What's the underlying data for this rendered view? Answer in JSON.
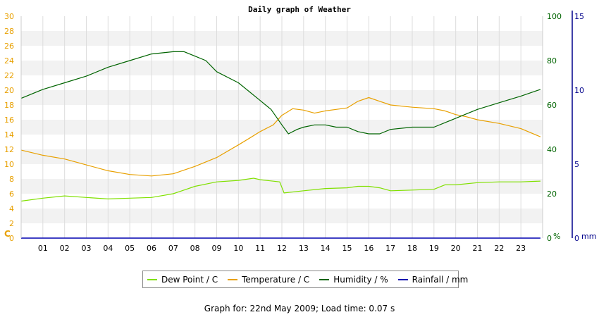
{
  "chart_data": {
    "type": "line",
    "title": "Daily graph of Weather",
    "x_ticks": [
      "01",
      "02",
      "03",
      "04",
      "05",
      "06",
      "07",
      "08",
      "09",
      "10",
      "11",
      "12",
      "13",
      "14",
      "15",
      "16",
      "17",
      "18",
      "19",
      "20",
      "21",
      "22",
      "23"
    ],
    "xlim": [
      0,
      24
    ],
    "left_axis": {
      "unit_label": "C",
      "ticks": [
        0,
        2,
        4,
        6,
        8,
        10,
        12,
        14,
        16,
        18,
        20,
        22,
        24,
        26,
        28,
        30
      ],
      "range": [
        0,
        30
      ],
      "color": "#e8a000"
    },
    "right_axis_humidity": {
      "unit_label": "%",
      "ticks": [
        0,
        20,
        40,
        60,
        80,
        100
      ],
      "range": [
        0,
        100
      ],
      "color": "#006400"
    },
    "right_axis_rain": {
      "unit_label": "mm",
      "ticks": [
        0,
        5,
        10,
        15
      ],
      "range": [
        0,
        15
      ],
      "color": "#00008b"
    },
    "grid": true,
    "series": [
      {
        "name": "Dew Point / C",
        "axis": "left",
        "color": "#80e000",
        "x": [
          0,
          1,
          2,
          3,
          4,
          5,
          6,
          7,
          8,
          9,
          10,
          10.7,
          11,
          11.9,
          12.1,
          13,
          14,
          15,
          15.5,
          16,
          16.5,
          17,
          18,
          19,
          19.5,
          20,
          21,
          22,
          23,
          23.9
        ],
        "y": [
          5.0,
          5.4,
          5.7,
          5.5,
          5.3,
          5.4,
          5.5,
          6.0,
          7.0,
          7.6,
          7.8,
          8.1,
          7.9,
          7.6,
          6.1,
          6.4,
          6.7,
          6.8,
          7.0,
          7.0,
          6.8,
          6.4,
          6.5,
          6.6,
          7.2,
          7.2,
          7.5,
          7.6,
          7.6,
          7.7
        ]
      },
      {
        "name": "Temperature / C",
        "axis": "left",
        "color": "#e8a000",
        "x": [
          0,
          1,
          2,
          3,
          4,
          5,
          6,
          7,
          8,
          9,
          10,
          10.5,
          11,
          11.6,
          12,
          12.5,
          13,
          13.5,
          14,
          14.5,
          15,
          15.5,
          16,
          16.5,
          17,
          18,
          19,
          19.5,
          20,
          20.5,
          21,
          22,
          23,
          23.9
        ],
        "y": [
          11.9,
          11.2,
          10.7,
          9.9,
          9.1,
          8.6,
          8.4,
          8.7,
          9.7,
          10.9,
          12.6,
          13.5,
          14.4,
          15.3,
          16.6,
          17.5,
          17.3,
          16.9,
          17.2,
          17.4,
          17.6,
          18.5,
          19.0,
          18.5,
          18.0,
          17.7,
          17.5,
          17.2,
          16.7,
          16.4,
          16.0,
          15.5,
          14.8,
          13.7
        ]
      },
      {
        "name": "Humidity / %",
        "axis": "humidity",
        "color": "#006400",
        "x": [
          0,
          1,
          2,
          3,
          4,
          5,
          6,
          6.5,
          7,
          7.5,
          8,
          8.5,
          9,
          10,
          10.5,
          11,
          11.5,
          12,
          12.3,
          12.7,
          13,
          13.5,
          14,
          14.5,
          15,
          15.5,
          16,
          16.5,
          17,
          18,
          19,
          19.5,
          20,
          20.5,
          21,
          22,
          23,
          23.9
        ],
        "y": [
          63,
          67,
          70,
          73,
          77,
          80,
          83,
          83.5,
          84,
          84,
          82,
          80,
          75,
          70,
          66,
          62,
          58,
          51,
          47,
          49,
          50,
          51,
          51,
          50,
          50,
          48,
          47,
          47,
          49,
          50,
          50,
          52,
          54,
          56,
          58,
          61,
          64,
          67
        ]
      },
      {
        "name": "Rainfall / mm",
        "axis": "rain",
        "color": "#0000b0",
        "x": [
          0,
          23.9
        ],
        "y": [
          0,
          0
        ]
      }
    ]
  },
  "footer": {
    "text": "Graph for: 22nd May 2009; Load time: 0.07 s"
  }
}
